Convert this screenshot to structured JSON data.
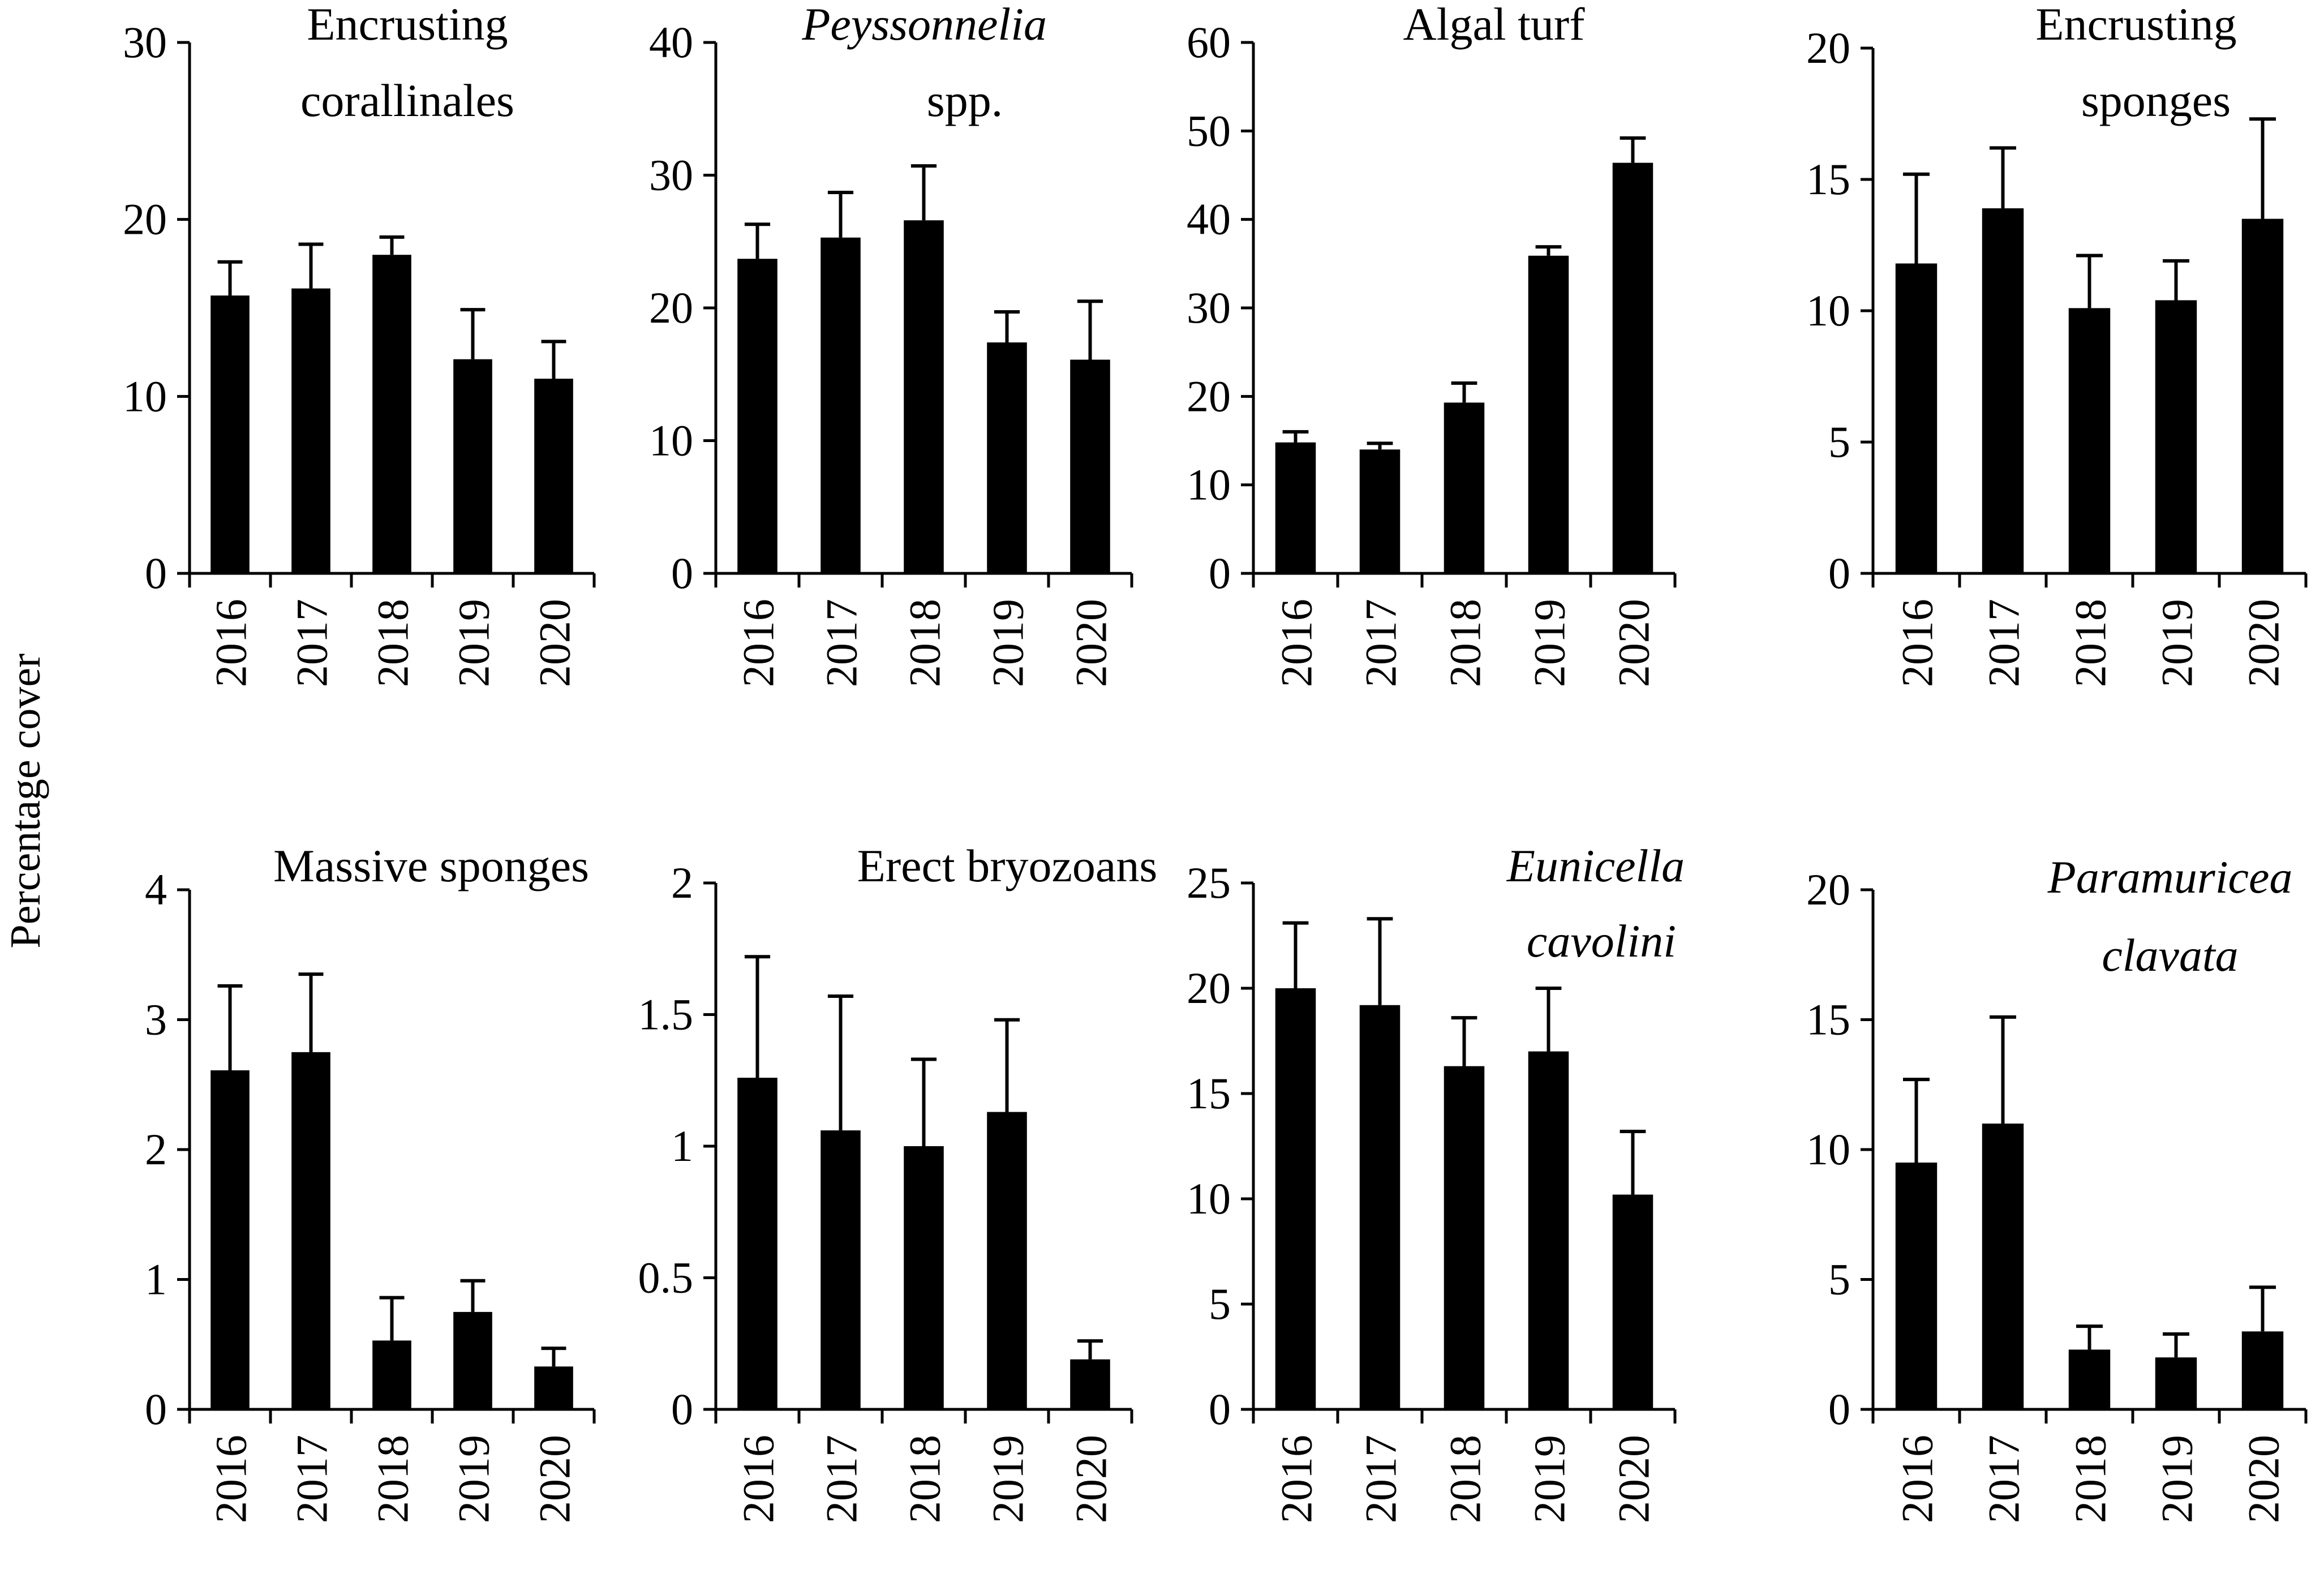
{
  "ylabel": "Percentage cover",
  "chart_data": [
    {
      "type": "bar",
      "title": [
        "Encrusting",
        "corallinales"
      ],
      "title_italic": false,
      "categories": [
        "2016",
        "2017",
        "2018",
        "2019",
        "2020"
      ],
      "values": [
        15.7,
        16.1,
        18.0,
        12.1,
        11.0
      ],
      "errors": [
        1.9,
        2.5,
        1.0,
        2.8,
        2.1
      ],
      "ylim": [
        0,
        30
      ],
      "yticks": [
        0,
        10,
        20,
        30
      ],
      "ytick_labels": [
        "0",
        "10",
        "20",
        "30"
      ]
    },
    {
      "type": "bar",
      "title": [
        "Peyssonnelia",
        "spp."
      ],
      "title_italic": [
        true,
        false
      ],
      "categories": [
        "2016",
        "2017",
        "2018",
        "2019",
        "2020"
      ],
      "values": [
        23.7,
        25.3,
        26.6,
        17.4,
        16.1
      ],
      "errors": [
        2.6,
        3.4,
        4.1,
        2.3,
        4.4
      ],
      "ylim": [
        0,
        40
      ],
      "yticks": [
        0,
        10,
        20,
        30,
        40
      ],
      "ytick_labels": [
        "0",
        "10",
        "20",
        "30",
        "40"
      ]
    },
    {
      "type": "bar",
      "title": [
        "Algal turf"
      ],
      "title_italic": false,
      "categories": [
        "2016",
        "2017",
        "2018",
        "2019",
        "2020"
      ],
      "values": [
        14.8,
        14.0,
        19.3,
        35.9,
        46.4
      ],
      "errors": [
        1.2,
        0.7,
        2.2,
        1.0,
        2.8
      ],
      "ylim": [
        0,
        60
      ],
      "yticks": [
        0,
        10,
        20,
        30,
        40,
        50,
        60
      ],
      "ytick_labels": [
        "0",
        "10",
        "20",
        "30",
        "40",
        "50",
        "60"
      ]
    },
    {
      "type": "bar",
      "title": [
        "Encrusting",
        "sponges"
      ],
      "title_italic": false,
      "categories": [
        "2016",
        "2017",
        "2018",
        "2019",
        "2020"
      ],
      "values": [
        11.8,
        13.9,
        10.1,
        10.4,
        13.5
      ],
      "errors": [
        3.4,
        2.3,
        2.0,
        1.5,
        3.8
      ],
      "ylim": [
        0,
        20
      ],
      "yticks": [
        0,
        5,
        10,
        15,
        20
      ],
      "ytick_labels": [
        "0",
        "5",
        "10",
        "15",
        "20"
      ]
    },
    {
      "type": "bar",
      "title": [
        "Massive sponges"
      ],
      "title_italic": false,
      "categories": [
        "2016",
        "2017",
        "2018",
        "2019",
        "2020"
      ],
      "values": [
        2.61,
        2.75,
        0.53,
        0.75,
        0.33
      ],
      "errors": [
        0.65,
        0.6,
        0.33,
        0.24,
        0.14
      ],
      "ylim": [
        0,
        4
      ],
      "yticks": [
        0,
        1,
        2,
        3,
        4
      ],
      "ytick_labels": [
        "0",
        "1",
        "2",
        "3",
        "4"
      ]
    },
    {
      "type": "bar",
      "title": [
        "Erect bryozoans"
      ],
      "title_italic": false,
      "categories": [
        "2016",
        "2017",
        "2018",
        "2019",
        "2020"
      ],
      "values": [
        1.26,
        1.06,
        1.0,
        1.13,
        0.19
      ],
      "errors": [
        0.46,
        0.51,
        0.33,
        0.35,
        0.07
      ],
      "ylim": [
        0,
        2
      ],
      "yticks": [
        0,
        0.5,
        1,
        1.5,
        2
      ],
      "ytick_labels": [
        "0",
        "0.5",
        "1",
        "1.5",
        "2"
      ]
    },
    {
      "type": "bar",
      "title": [
        "Eunicella",
        "cavolini"
      ],
      "title_italic": true,
      "categories": [
        "2016",
        "2017",
        "2018",
        "2019",
        "2020"
      ],
      "values": [
        20.0,
        19.2,
        16.3,
        17.0,
        10.2
      ],
      "errors": [
        3.1,
        4.1,
        2.3,
        3.0,
        3.0
      ],
      "ylim": [
        0,
        25
      ],
      "yticks": [
        0,
        5,
        10,
        15,
        20,
        25
      ],
      "ytick_labels": [
        "0",
        "5",
        "10",
        "15",
        "20",
        "25"
      ]
    },
    {
      "type": "bar",
      "title": [
        "Paramuricea",
        "clavata"
      ],
      "title_italic": true,
      "categories": [
        "2016",
        "2017",
        "2018",
        "2019",
        "2020"
      ],
      "values": [
        9.5,
        11.0,
        2.3,
        2.0,
        3.0
      ],
      "errors": [
        3.2,
        4.1,
        0.9,
        0.9,
        1.7
      ],
      "ylim": [
        0,
        20
      ],
      "yticks": [
        0,
        5,
        10,
        15,
        20
      ],
      "ytick_labels": [
        "0",
        "5",
        "10",
        "15",
        "20"
      ]
    }
  ]
}
